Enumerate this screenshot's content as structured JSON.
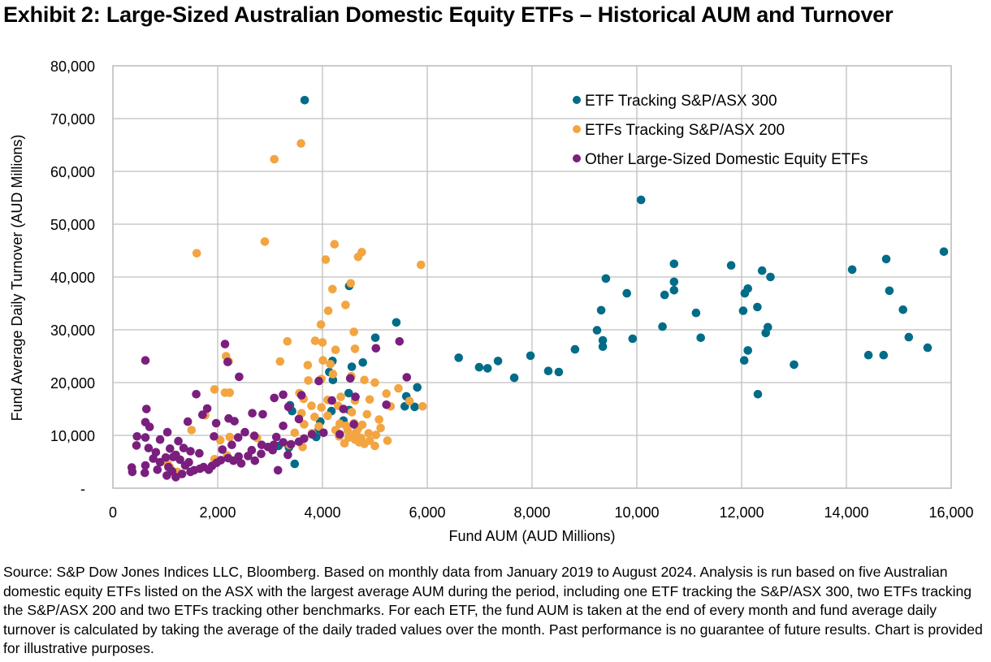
{
  "title": "Exhibit 2: Large-Sized Australian Domestic Equity ETFs – Historical AUM and Turnover",
  "source_note": "Source: S&P Dow Jones Indices LLC, Bloomberg. Based on monthly data from January 2019 to August 2024.  Analysis is run based on five Australian domestic equity ETFs listed on the ASX with the largest average AUM during the period, including one ETF tracking the S&P/ASX 300, two ETFs tracking the S&P/ASX 200 and two ETFs tracking other benchmarks. For each ETF, the fund AUM is taken at the end of every month and fund average daily turnover is calculated by taking the average of the daily traded values over the month. Past performance is no guarantee of future results. Chart is provided for illustrative purposes.",
  "chart_data": {
    "type": "scatter",
    "title": "Exhibit 2: Large-Sized Australian Domestic Equity ETFs – Historical AUM and Turnover",
    "xlabel": "Fund AUM (AUD Millions)",
    "ylabel": "Fund Average Daily Turnover (AUD Millions)",
    "xlim": [
      0,
      16000
    ],
    "ylim": [
      0,
      80000
    ],
    "xticks": [
      0,
      2000,
      4000,
      6000,
      8000,
      10000,
      12000,
      14000,
      16000
    ],
    "xtick_labels": [
      "0",
      "2,000",
      "4,000",
      "6,000",
      "8,000",
      "10,000",
      "12,000",
      "14,000",
      "16,000"
    ],
    "yticks": [
      0,
      10000,
      20000,
      30000,
      40000,
      50000,
      60000,
      70000,
      80000
    ],
    "ytick_labels": [
      "-",
      "10,000",
      "20,000",
      "30,000",
      "40,000",
      "50,000",
      "60,000",
      "70,000",
      "80,000"
    ],
    "grid": true,
    "legend_position": "top-right",
    "series": [
      {
        "name": "ETF Tracking S&P/ASX 300",
        "color": "#006C88",
        "points": [
          [
            3660,
            73500
          ],
          [
            15860,
            44800
          ],
          [
            14760,
            43400
          ],
          [
            14110,
            41400
          ],
          [
            14820,
            37400
          ],
          [
            15080,
            33800
          ],
          [
            15190,
            28600
          ],
          [
            15550,
            26600
          ],
          [
            14420,
            25200
          ],
          [
            14710,
            25200
          ],
          [
            11800,
            42200
          ],
          [
            12390,
            41200
          ],
          [
            12550,
            40000
          ],
          [
            12120,
            37800
          ],
          [
            12060,
            36900
          ],
          [
            12030,
            33600
          ],
          [
            12300,
            34300
          ],
          [
            12500,
            30500
          ],
          [
            12460,
            29400
          ],
          [
            12120,
            26100
          ],
          [
            12050,
            24200
          ],
          [
            13000,
            23400
          ],
          [
            12310,
            17800
          ],
          [
            6600,
            24700
          ],
          [
            6990,
            22900
          ],
          [
            7150,
            22700
          ],
          [
            7350,
            24100
          ],
          [
            7660,
            20900
          ],
          [
            7970,
            25100
          ],
          [
            8310,
            22200
          ],
          [
            8510,
            22000
          ],
          [
            8820,
            26300
          ],
          [
            9240,
            29900
          ],
          [
            9320,
            33700
          ],
          [
            9410,
            39700
          ],
          [
            9350,
            28000
          ],
          [
            9350,
            26800
          ],
          [
            9810,
            36900
          ],
          [
            9920,
            28300
          ],
          [
            10080,
            54600
          ],
          [
            10490,
            30600
          ],
          [
            10530,
            36600
          ],
          [
            10710,
            42500
          ],
          [
            10710,
            39100
          ],
          [
            10710,
            37500
          ],
          [
            11130,
            33200
          ],
          [
            11220,
            28500
          ],
          [
            5010,
            28500
          ],
          [
            5410,
            31400
          ],
          [
            4510,
            38300
          ],
          [
            4770,
            23800
          ],
          [
            4190,
            24100
          ],
          [
            4130,
            22000
          ],
          [
            4200,
            20500
          ],
          [
            4500,
            18000
          ],
          [
            4560,
            23000
          ],
          [
            5810,
            19100
          ],
          [
            5600,
            17400
          ],
          [
            5760,
            15400
          ],
          [
            5570,
            15500
          ],
          [
            4170,
            14600
          ],
          [
            4510,
            14800
          ],
          [
            3880,
            9700
          ],
          [
            3960,
            12600
          ],
          [
            3160,
            8000
          ],
          [
            3360,
            7700
          ],
          [
            3380,
            15700
          ],
          [
            3420,
            14600
          ],
          [
            3470,
            4600
          ],
          [
            3930,
            11200
          ],
          [
            4400,
            12800
          ]
        ]
      },
      {
        "name": "ETFs Tracking S&P/ASX 200",
        "color": "#F2A541",
        "points": [
          [
            3590,
            65300
          ],
          [
            3080,
            62300
          ],
          [
            2900,
            46700
          ],
          [
            1600,
            44500
          ],
          [
            4230,
            46200
          ],
          [
            4750,
            44700
          ],
          [
            4680,
            43800
          ],
          [
            4060,
            43300
          ],
          [
            5880,
            42300
          ],
          [
            4540,
            38800
          ],
          [
            4190,
            37700
          ],
          [
            4440,
            34700
          ],
          [
            4110,
            33600
          ],
          [
            3970,
            31000
          ],
          [
            4600,
            29600
          ],
          [
            3330,
            27800
          ],
          [
            3860,
            27900
          ],
          [
            4000,
            27600
          ],
          [
            4250,
            26200
          ],
          [
            4620,
            26400
          ],
          [
            4010,
            24200
          ],
          [
            3190,
            24000
          ],
          [
            2160,
            25000
          ],
          [
            2210,
            24000
          ],
          [
            4150,
            23500
          ],
          [
            3720,
            23300
          ],
          [
            3980,
            20700
          ],
          [
            4200,
            21600
          ],
          [
            4550,
            21200
          ],
          [
            3730,
            20400
          ],
          [
            4800,
            20500
          ],
          [
            5000,
            20000
          ],
          [
            3560,
            18000
          ],
          [
            1940,
            18700
          ],
          [
            2140,
            18100
          ],
          [
            2230,
            18100
          ],
          [
            3640,
            16900
          ],
          [
            4100,
            16700
          ],
          [
            4350,
            17300
          ],
          [
            4620,
            16600
          ],
          [
            5220,
            17900
          ],
          [
            5450,
            18900
          ],
          [
            5660,
            16500
          ],
          [
            5910,
            15500
          ],
          [
            3790,
            15600
          ],
          [
            3980,
            15300
          ],
          [
            4300,
            15600
          ],
          [
            4900,
            16800
          ],
          [
            5300,
            15500
          ],
          [
            3600,
            14200
          ],
          [
            3850,
            13500
          ],
          [
            4100,
            13700
          ],
          [
            4560,
            14400
          ],
          [
            4850,
            14000
          ],
          [
            5080,
            13000
          ],
          [
            3650,
            12100
          ],
          [
            3930,
            11700
          ],
          [
            4330,
            12200
          ],
          [
            4600,
            12300
          ],
          [
            4760,
            12000
          ],
          [
            5110,
            11400
          ],
          [
            1500,
            11000
          ],
          [
            3470,
            10500
          ],
          [
            3800,
            10400
          ],
          [
            4250,
            11000
          ],
          [
            4480,
            10900
          ],
          [
            4650,
            10700
          ],
          [
            4880,
            10400
          ],
          [
            5240,
            9000
          ],
          [
            4500,
            9600
          ],
          [
            4620,
            9200
          ],
          [
            4700,
            8700
          ],
          [
            4800,
            8400
          ],
          [
            4900,
            9000
          ],
          [
            5000,
            8000
          ],
          [
            4420,
            8500
          ],
          [
            4560,
            10000
          ],
          [
            4740,
            9500
          ],
          [
            3370,
            8200
          ],
          [
            3620,
            7800
          ],
          [
            1050,
            4500
          ],
          [
            1090,
            3900
          ],
          [
            2180,
            6200
          ],
          [
            1940,
            5500
          ],
          [
            1230,
            3100
          ],
          [
            2750,
            9500
          ],
          [
            2230,
            9700
          ],
          [
            1760,
            13800
          ],
          [
            2050,
            9100
          ],
          [
            4680,
            11300
          ],
          [
            4450,
            11800
          ],
          [
            5020,
            10100
          ],
          [
            4320,
            9800
          ]
        ]
      },
      {
        "name": "Other Large-Sized Domestic Equity ETFs",
        "color": "#7A1F7E",
        "points": [
          [
            620,
            24200
          ],
          [
            640,
            15000
          ],
          [
            620,
            12500
          ],
          [
            700,
            11600
          ],
          [
            1040,
            10600
          ],
          [
            460,
            9800
          ],
          [
            620,
            9600
          ],
          [
            900,
            9200
          ],
          [
            450,
            8100
          ],
          [
            680,
            7600
          ],
          [
            820,
            6800
          ],
          [
            1090,
            7500
          ],
          [
            1350,
            7600
          ],
          [
            1150,
            5900
          ],
          [
            770,
            5600
          ],
          [
            1010,
            5800
          ],
          [
            1200,
            6300
          ],
          [
            1280,
            5400
          ],
          [
            900,
            4900
          ],
          [
            1450,
            4900
          ],
          [
            620,
            4300
          ],
          [
            360,
            3900
          ],
          [
            370,
            3100
          ],
          [
            610,
            2900
          ],
          [
            1030,
            2400
          ],
          [
            1200,
            2100
          ],
          [
            1130,
            3200
          ],
          [
            1320,
            2700
          ],
          [
            1550,
            3400
          ],
          [
            1660,
            3700
          ],
          [
            1730,
            4000
          ],
          [
            1890,
            4200
          ],
          [
            1980,
            4800
          ],
          [
            2060,
            5300
          ],
          [
            2200,
            5700
          ],
          [
            2400,
            6000
          ],
          [
            2580,
            6100
          ],
          [
            2710,
            5200
          ],
          [
            2650,
            7200
          ],
          [
            2960,
            7800
          ],
          [
            3070,
            8200
          ],
          [
            3250,
            8700
          ],
          [
            3400,
            8300
          ],
          [
            3550,
            8800
          ],
          [
            3650,
            9400
          ],
          [
            3800,
            10200
          ],
          [
            4020,
            10500
          ],
          [
            4330,
            10200
          ],
          [
            2140,
            27300
          ],
          [
            2190,
            23900
          ],
          [
            2410,
            21100
          ],
          [
            1590,
            17800
          ],
          [
            1710,
            13900
          ],
          [
            1430,
            12600
          ],
          [
            1800,
            15100
          ],
          [
            2210,
            13200
          ],
          [
            1970,
            12300
          ],
          [
            2320,
            12700
          ],
          [
            1930,
            9800
          ],
          [
            2390,
            9600
          ],
          [
            2520,
            10600
          ],
          [
            2700,
            9900
          ],
          [
            3120,
            9700
          ],
          [
            2860,
            14000
          ],
          [
            2660,
            14200
          ],
          [
            3080,
            17100
          ],
          [
            3250,
            17700
          ],
          [
            3350,
            15400
          ],
          [
            3250,
            11800
          ],
          [
            3550,
            13100
          ],
          [
            3600,
            17600
          ],
          [
            4530,
            20800
          ],
          [
            4630,
            17300
          ],
          [
            5020,
            26500
          ],
          [
            5470,
            27800
          ],
          [
            5610,
            21000
          ],
          [
            5220,
            15800
          ],
          [
            4400,
            15000
          ],
          [
            4600,
            12100
          ],
          [
            3930,
            20300
          ],
          [
            4180,
            16600
          ],
          [
            1250,
            8900
          ],
          [
            1480,
            7000
          ],
          [
            1650,
            6600
          ],
          [
            2090,
            7300
          ],
          [
            2270,
            8200
          ],
          [
            2840,
            8200
          ],
          [
            3050,
            7200
          ],
          [
            3340,
            6300
          ],
          [
            2830,
            6500
          ],
          [
            1830,
            3500
          ],
          [
            1480,
            3100
          ],
          [
            2450,
            4700
          ],
          [
            2300,
            5200
          ],
          [
            3150,
            3400
          ],
          [
            850,
            3500
          ],
          [
            1060,
            4000
          ],
          [
            1380,
            4300
          ]
        ]
      }
    ]
  }
}
